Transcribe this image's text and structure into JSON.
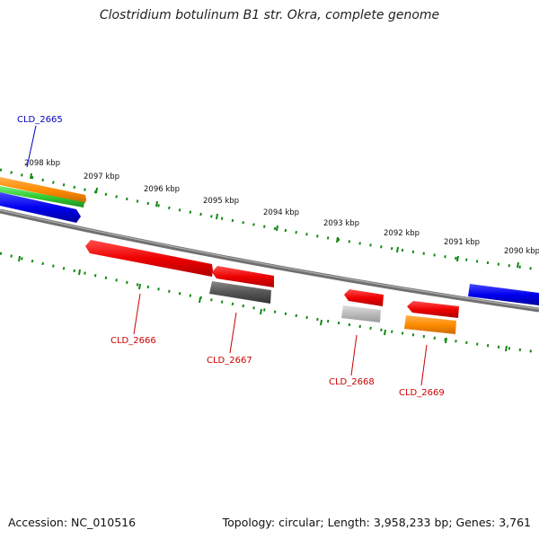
{
  "title": "Clostridium botulinum B1 str. Okra, complete genome",
  "footer": {
    "accession": "Accession: NC_010516",
    "summary": "Topology: circular; Length: 3,958,233 bp; Genes: 3,761"
  },
  "kbp_labels": [
    "2098 kbp",
    "2097 kbp",
    "2096 kbp",
    "2095 kbp",
    "2094 kbp",
    "2093 kbp",
    "2092 kbp",
    "2091 kbp",
    "2090 kbp"
  ],
  "gene_labels": {
    "g2665": "CLD_2665",
    "g2666": "CLD_2666",
    "g2667": "CLD_2667",
    "g2668": "CLD_2668",
    "g2669": "CLD_2669"
  },
  "colors": {
    "blue_label": "#0000bb",
    "red_label": "#cc0000",
    "ruler": "#118811",
    "backbone": "#808080",
    "red_feature": "#ee0000",
    "blue_feature": "#0000ee",
    "orange_feature": "#ff8c00",
    "green_feature": "#33cc33",
    "darkgray_feature": "#555555",
    "lightgray_feature": "#bbbbbb"
  }
}
